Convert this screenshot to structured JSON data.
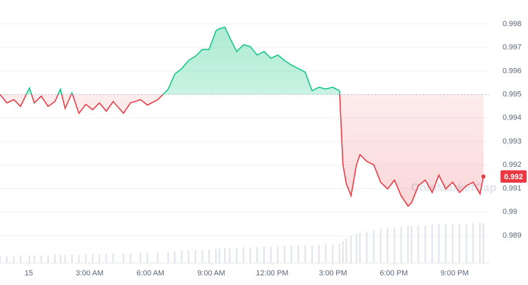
{
  "chart_data": {
    "type": "line",
    "watermark": "CoinMarketCap",
    "baseline": 0.995,
    "up_color": "#16c784",
    "down_color": "#ea3943",
    "last_price_label": "0.992",
    "xlim": [
      -1.42,
      23.6
    ],
    "xticks": [
      {
        "value": 0,
        "label": "15"
      },
      {
        "value": 3,
        "label": "3:00 AM"
      },
      {
        "value": 6,
        "label": "6:00 AM"
      },
      {
        "value": 9,
        "label": "9:00 AM"
      },
      {
        "value": 12,
        "label": "12:00 PM"
      },
      {
        "value": 15,
        "label": "3:00 PM"
      },
      {
        "value": 18,
        "label": "6:00 PM"
      },
      {
        "value": 21,
        "label": "9:00 PM"
      }
    ],
    "ylim": [
      0.98783,
      0.99902
    ],
    "yticks": [
      0.989,
      0.99,
      0.991,
      0.992,
      0.993,
      0.994,
      0.995,
      0.996,
      0.997,
      0.998
    ],
    "grid": true,
    "x": [
      -1.42,
      -1.08,
      -0.74,
      -0.41,
      0.03,
      0.27,
      0.61,
      0.95,
      1.29,
      1.56,
      1.79,
      2.13,
      2.47,
      2.81,
      3.15,
      3.48,
      3.82,
      4.16,
      4.67,
      5.01,
      5.51,
      5.85,
      6.36,
      6.87,
      7.2,
      7.54,
      7.88,
      8.22,
      8.56,
      8.89,
      9.23,
      9.4,
      9.67,
      9.91,
      10.25,
      10.59,
      10.92,
      11.26,
      11.6,
      11.94,
      12.28,
      12.61,
      12.95,
      13.29,
      13.63,
      13.97,
      14.31,
      14.64,
      14.98,
      15.32,
      15.49,
      15.66,
      15.89,
      16.16,
      16.33,
      16.67,
      17.01,
      17.35,
      17.69,
      18.03,
      18.36,
      18.7,
      18.87,
      19.21,
      19.55,
      19.89,
      20.22,
      20.56,
      20.9,
      21.24,
      21.58,
      21.91,
      22.25,
      22.42
    ],
    "series": [
      {
        "name": "Price",
        "values": [
          0.995,
          0.99464,
          0.99478,
          0.99449,
          0.99528,
          0.99464,
          0.99493,
          0.99449,
          0.9947,
          0.99523,
          0.99441,
          0.99507,
          0.9942,
          0.99458,
          0.99435,
          0.99464,
          0.99429,
          0.9947,
          0.9942,
          0.99464,
          0.99478,
          0.99455,
          0.99478,
          0.99522,
          0.99587,
          0.9961,
          0.99645,
          0.99663,
          0.99692,
          0.99692,
          0.99771,
          0.9978,
          0.99786,
          0.99742,
          0.99683,
          0.99712,
          0.99704,
          0.99668,
          0.99683,
          0.99654,
          0.99668,
          0.99645,
          0.99625,
          0.9961,
          0.99595,
          0.99516,
          0.99531,
          0.99523,
          0.99531,
          0.99516,
          0.99201,
          0.99119,
          0.99069,
          0.99201,
          0.99244,
          0.99215,
          0.99201,
          0.99127,
          0.99098,
          0.99136,
          0.99069,
          0.99025,
          0.99039,
          0.99112,
          0.99136,
          0.99083,
          0.99157,
          0.99098,
          0.99127,
          0.99083,
          0.99112,
          0.99127,
          0.99077,
          0.99151
        ]
      },
      {
        "name": "Volume",
        "color": "#dfe3ea",
        "values": [
          10,
          10,
          10,
          11,
          11,
          11,
          11,
          11,
          12,
          12,
          12,
          12,
          12,
          13,
          13,
          13,
          13,
          14,
          14,
          14,
          15,
          15,
          15,
          16,
          17,
          18,
          18,
          19,
          19,
          20,
          21,
          21,
          22,
          22,
          22,
          23,
          23,
          23,
          24,
          24,
          24,
          25,
          25,
          25,
          26,
          26,
          26,
          27,
          27,
          28,
          32,
          36,
          40,
          42,
          44,
          46,
          48,
          50,
          51,
          52,
          53,
          54,
          54,
          55,
          55,
          56,
          56,
          56,
          57,
          57,
          57,
          58,
          58,
          58
        ]
      }
    ],
    "vlim": [
      0,
      100
    ]
  }
}
